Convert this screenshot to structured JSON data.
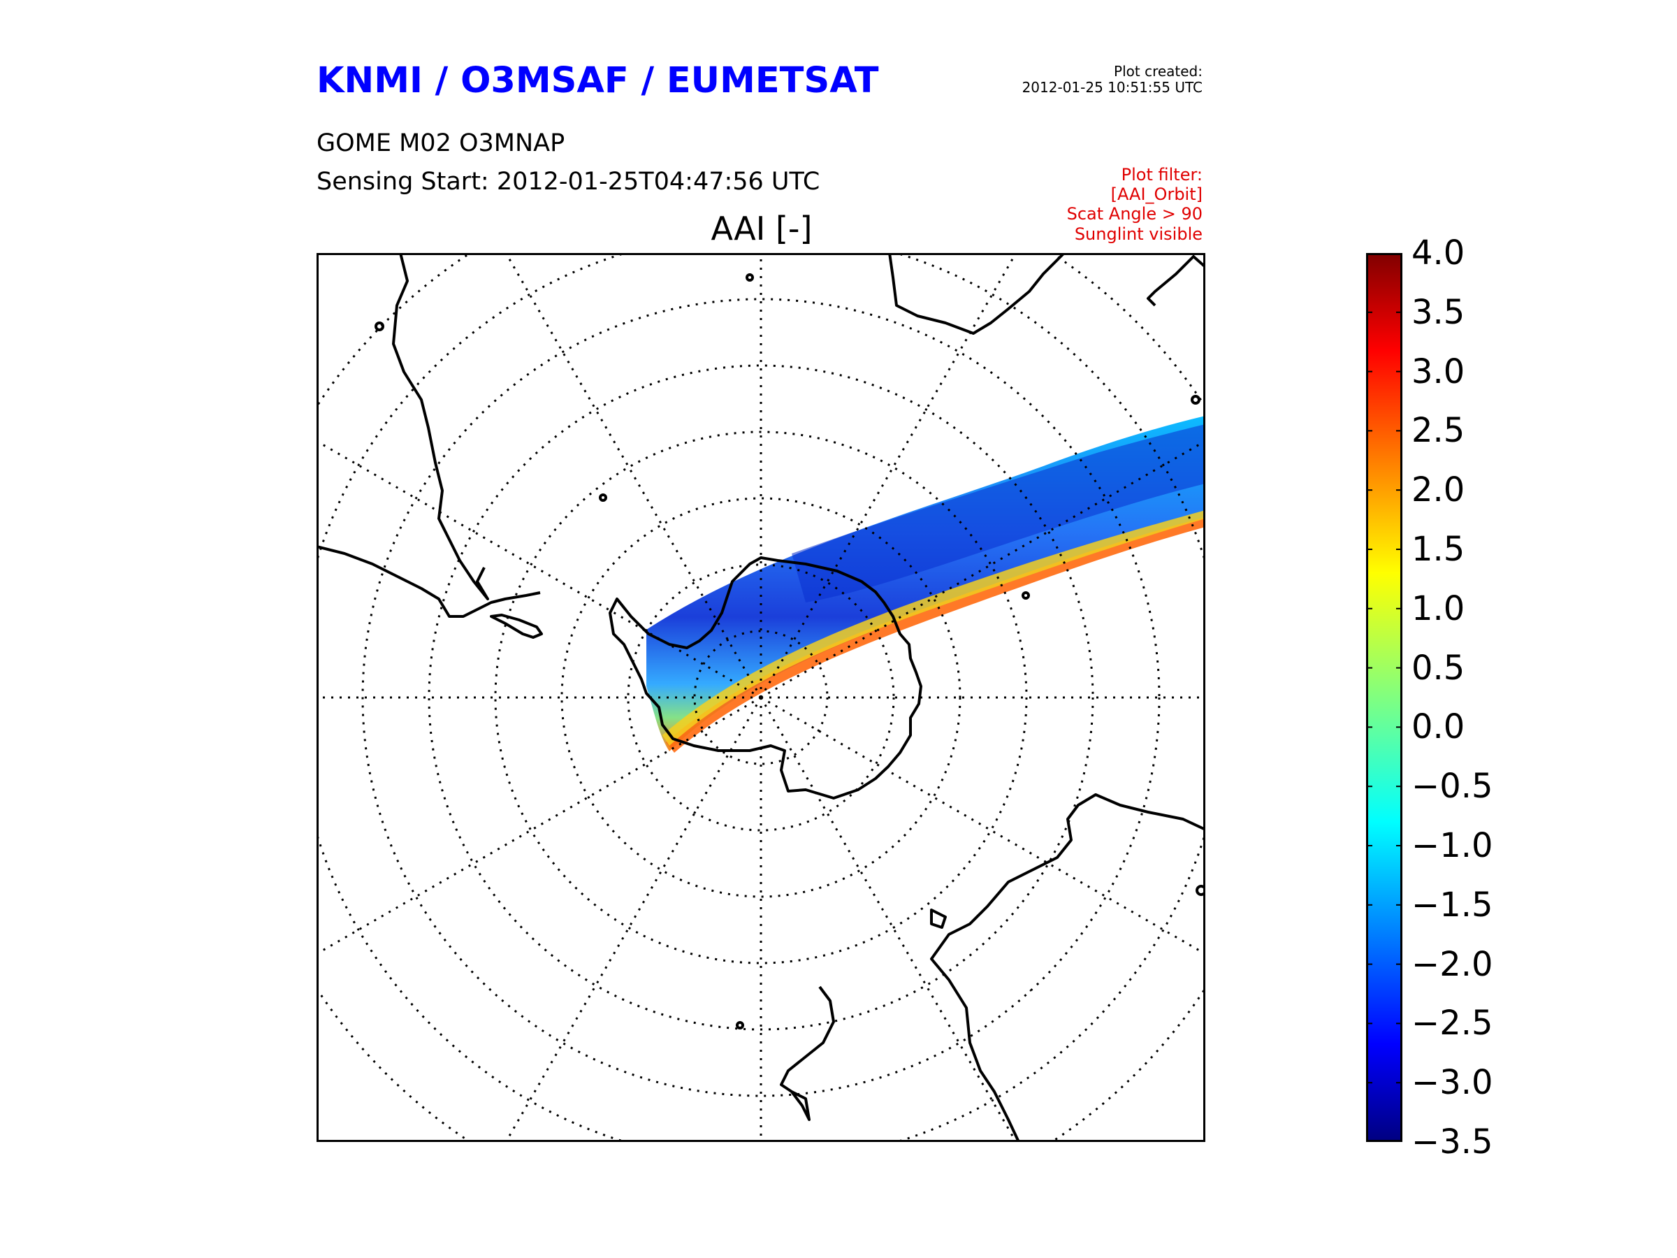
{
  "header": {
    "org_title": "KNMI / O3MSAF / EUMETSAT",
    "created_label": "Plot created:",
    "created_value": "2012-01-25 10:51:55 UTC",
    "product": "GOME M02 O3MNAP",
    "sensing_start": "Sensing Start: 2012-01-25T04:47:56 UTC"
  },
  "filter": {
    "lines": [
      "Plot filter:",
      "[AAI_Orbit]",
      "Scat Angle > 90",
      "Sunglint visible"
    ],
    "color": "#e00000"
  },
  "map": {
    "title": "AAI [-]",
    "projection": "south-polar-stereographic",
    "graticule": "dotted",
    "coastline_color": "#000000"
  },
  "colorbar": {
    "colormap": "jet",
    "min": -3.5,
    "max": 4.0,
    "ticks": [
      "4.0",
      "3.5",
      "3.0",
      "2.5",
      "2.0",
      "1.5",
      "1.0",
      "0.5",
      "0.0",
      "−0.5",
      "−1.0",
      "−1.5",
      "−2.0",
      "−2.5",
      "−3.0",
      "−3.5"
    ]
  }
}
